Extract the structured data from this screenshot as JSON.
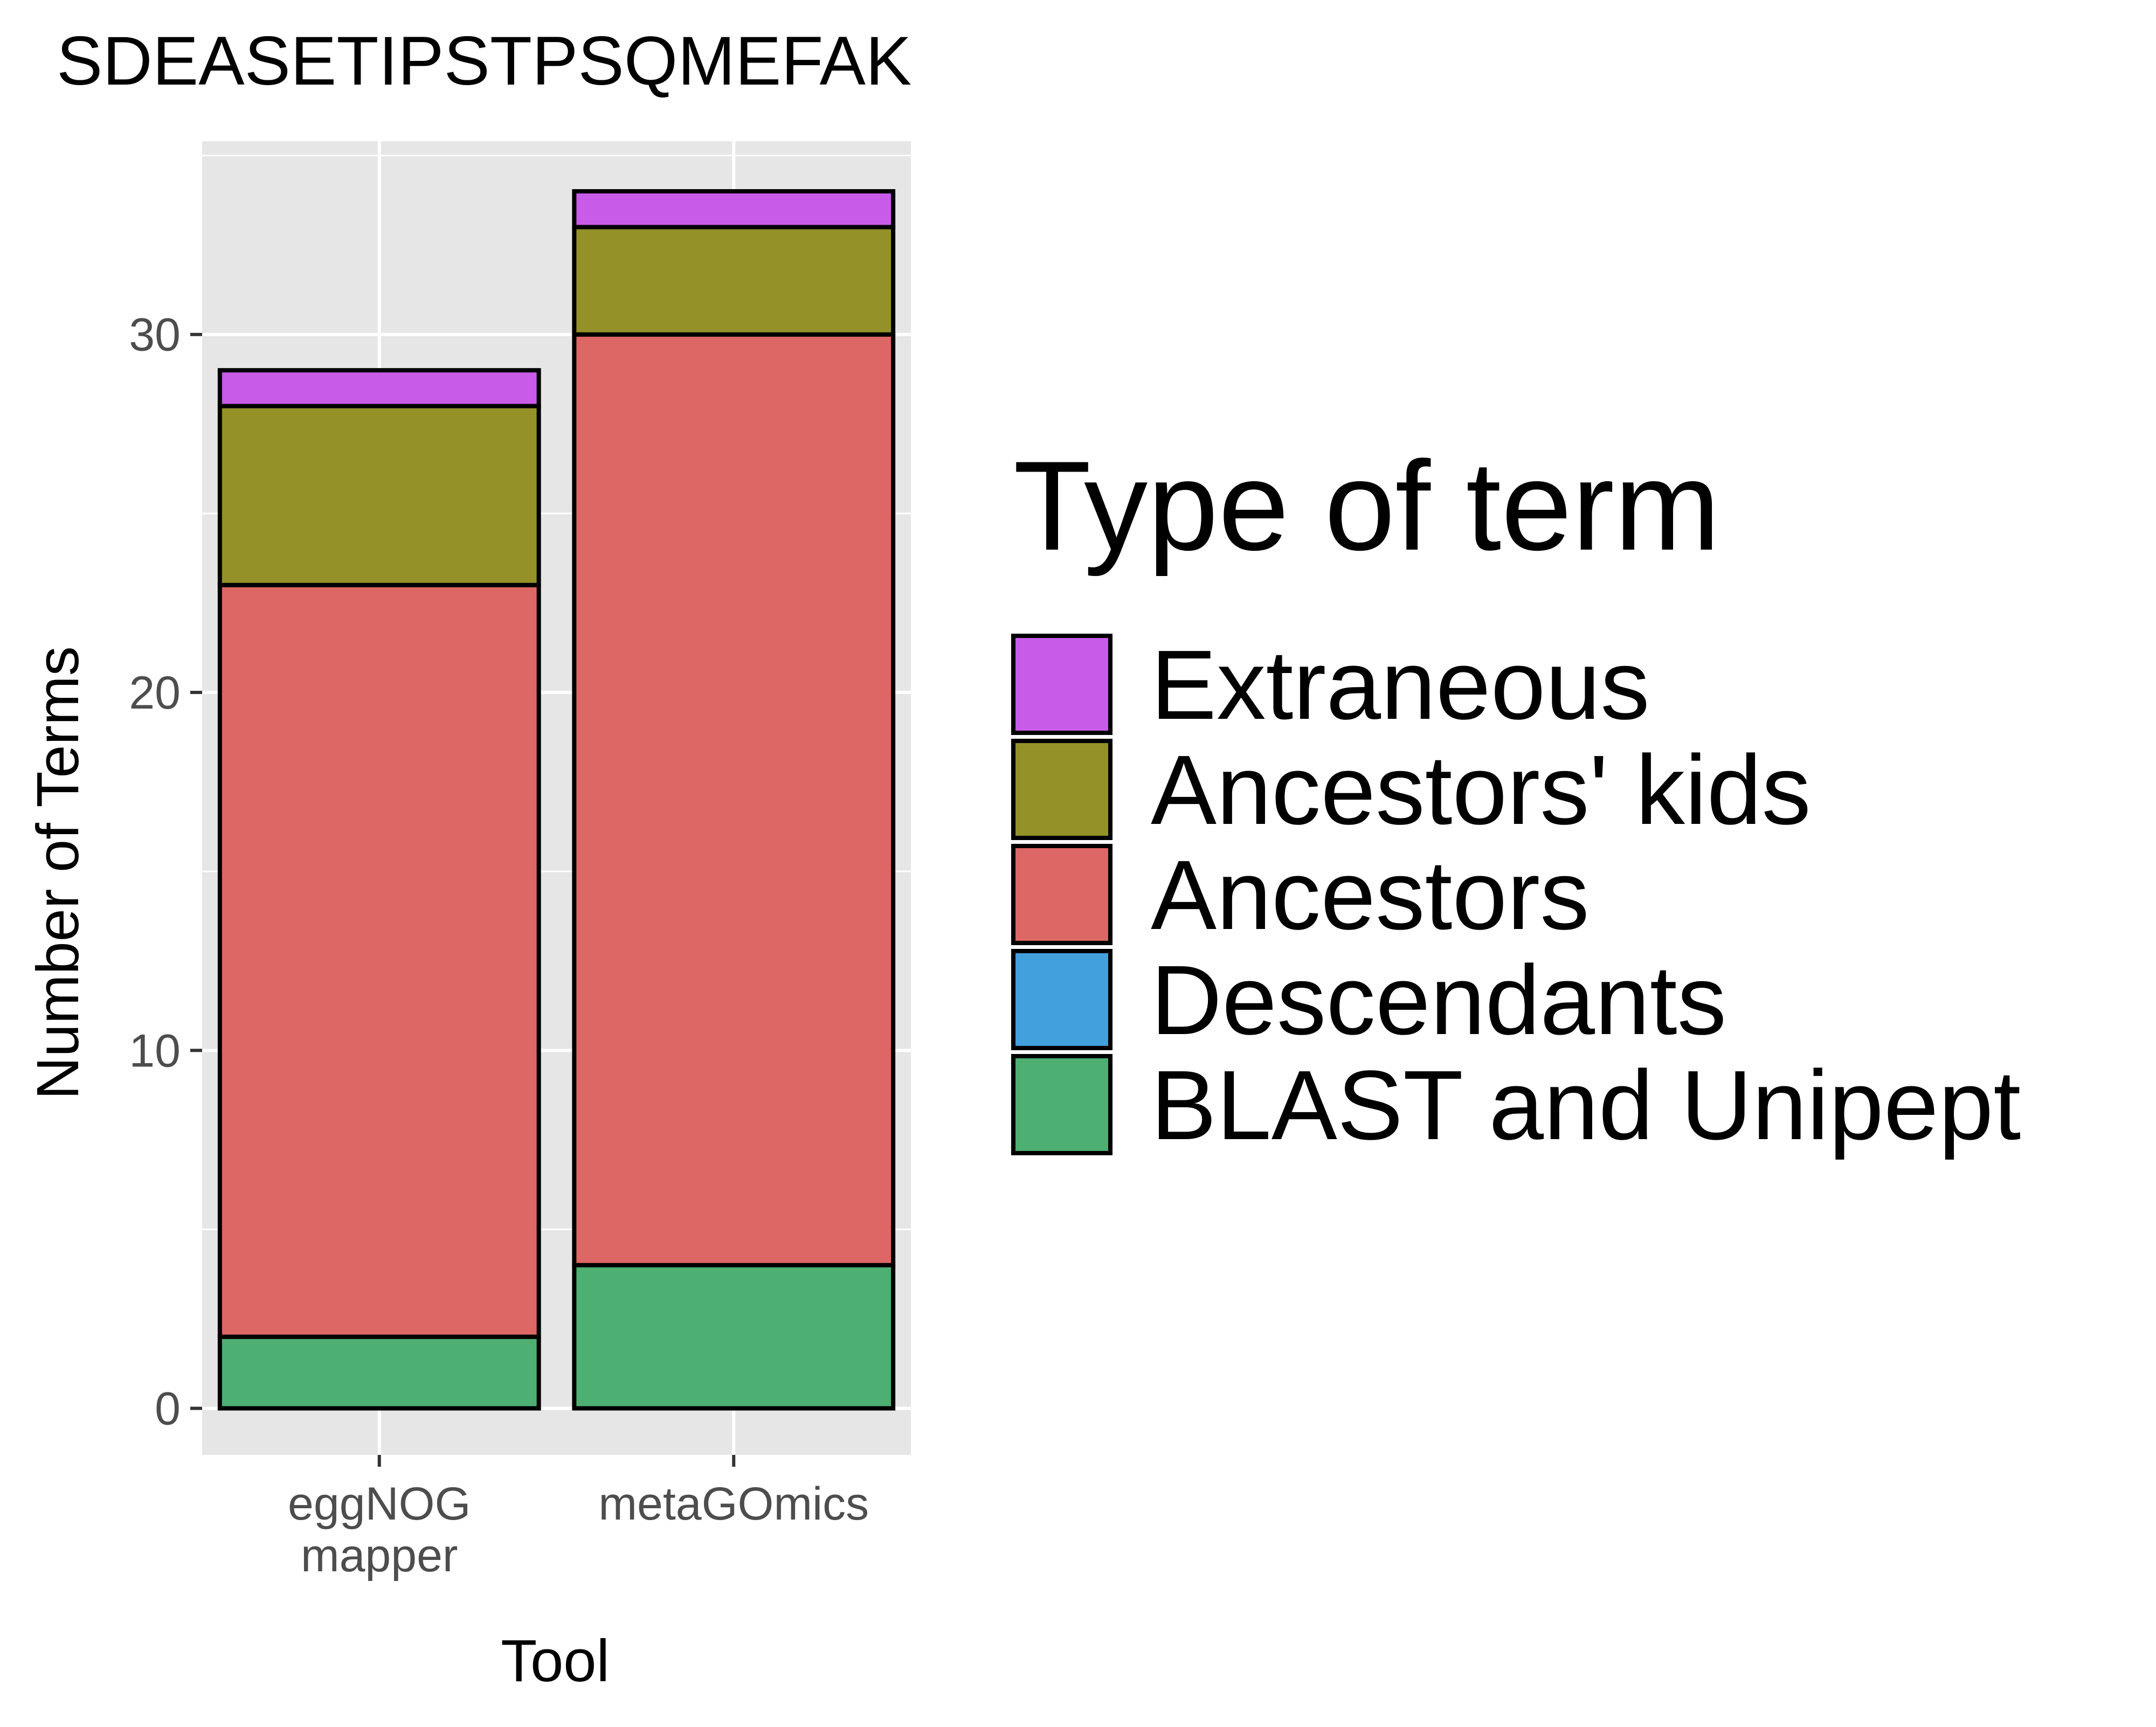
{
  "chart_data": {
    "type": "bar",
    "stacked": true,
    "title": "SDEASETIPSTPSQMEFAK",
    "xlabel": "Tool",
    "ylabel": "Number of Terms",
    "categories": [
      [
        "eggNOG",
        "mapper"
      ],
      [
        "metaGOmics"
      ]
    ],
    "ylim": [
      -1.3,
      35.4
    ],
    "yticks": [
      0,
      10,
      20,
      30
    ],
    "grid": true,
    "legend": {
      "title": "Type of term",
      "placement": "right",
      "entries": [
        "Extraneous",
        "Ancestors' kids",
        "Ancestors",
        "Descendants",
        "BLAST and Unipept"
      ]
    },
    "series": [
      {
        "name": "BLAST and Unipept",
        "color": "#4daf72",
        "values": [
          2,
          4
        ]
      },
      {
        "name": "Descendants",
        "color": "#42a0dc",
        "values": [
          0,
          0
        ]
      },
      {
        "name": "Ancestors",
        "color": "#dc6764",
        "values": [
          21,
          26
        ]
      },
      {
        "name": "Ancestors' kids",
        "color": "#949129",
        "values": [
          5,
          3
        ]
      },
      {
        "name": "Extraneous",
        "color": "#c85be8",
        "values": [
          1,
          1
        ]
      }
    ]
  }
}
